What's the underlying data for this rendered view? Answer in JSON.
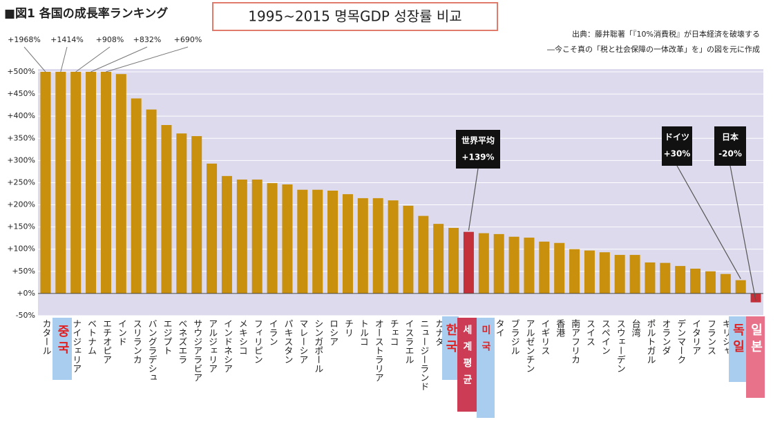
{
  "chart_data": {
    "type": "bar",
    "title": "■図1 各国の成長率ランキング",
    "subtitle": "1995~2015 명목GDP 성장률 비교",
    "source": [
      "出典：藤井聡著「『10%消費税』が日本経済を破壊する",
      "―今こそ真の「税と社会保障の一体改革」を」の図を元に作成"
    ],
    "categories": [
      "カタール",
      null,
      "ナイジェリア",
      "ベトナム",
      "エチオピア",
      "インド",
      "スリランカ",
      "バングラデシュ",
      "エジプト",
      "ベネズエラ",
      "サウジアラビア",
      "アルジェリア",
      "インドネシア",
      "メキシコ",
      "フィリピン",
      "イラン",
      "パキスタン",
      "マレーシア",
      "シンガポール",
      "ロシア",
      "チリ",
      "トルコ",
      "オーストラリア",
      "チェコ",
      "イスラエル",
      "ニュージーランド",
      "カナダ",
      null,
      null,
      null,
      "タイ",
      "ブラジル",
      "アルゼンチン",
      "イギリス",
      "香港",
      "南アフリカ",
      "スイス",
      "スペイン",
      "スウェーデン",
      "台湾",
      "ポルトガル",
      "オランダ",
      "デンマーク",
      "イタリア",
      "フランス",
      "ギリシャ",
      null,
      null
    ],
    "values": [
      1968,
      1414,
      908,
      832,
      690,
      495,
      440,
      415,
      380,
      361,
      355,
      293,
      265,
      257,
      257,
      249,
      246,
      234,
      234,
      232,
      224,
      215,
      215,
      210,
      198,
      175,
      157,
      148,
      139,
      136,
      134,
      128,
      126,
      117,
      114,
      100,
      97,
      93,
      87,
      87,
      70,
      69,
      62,
      56,
      50,
      44,
      30,
      -20
    ],
    "value_labels": [
      "+1968%",
      "+1414%",
      "+908%",
      "+832%",
      "+690%",
      null,
      null,
      null,
      null,
      null,
      null,
      null,
      null,
      null,
      null,
      null,
      null,
      null,
      null,
      null,
      null,
      null,
      null,
      null,
      null,
      null,
      null,
      null,
      null,
      null,
      null,
      null,
      null,
      null,
      null,
      null,
      null,
      null,
      null,
      null,
      null,
      null,
      null,
      null,
      null,
      null,
      null,
      null
    ],
    "color": "#c8900c",
    "highlight_color": "#c4303a",
    "highlight": [
      28,
      47
    ],
    "annotations": [
      [
        "世界平均",
        "+139%"
      ],
      [
        "ドイツ",
        "+30%"
      ],
      [
        "日本",
        "-20%"
      ]
    ],
    "overlays": [
      "중국",
      "한국",
      "세계평균",
      "미국",
      "독일",
      "일본"
    ],
    "ylim": [
      -50,
      500
    ],
    "yticks": [
      {
        "value": -50,
        "label": "-50%"
      },
      {
        "value": 0,
        "label": "+0%"
      },
      {
        "value": 50,
        "label": "+50%"
      },
      {
        "value": 100,
        "label": "+100%"
      },
      {
        "value": 150,
        "label": "+150%"
      },
      {
        "value": 200,
        "label": "+200%"
      },
      {
        "value": 250,
        "label": "+250%"
      },
      {
        "value": 300,
        "label": "+300%"
      },
      {
        "value": 350,
        "label": "+350%"
      },
      {
        "value": 400,
        "label": "+400%"
      },
      {
        "value": 450,
        "label": "+450%"
      },
      {
        "value": 500,
        "label": "+500%"
      }
    ],
    "grid": true
  }
}
